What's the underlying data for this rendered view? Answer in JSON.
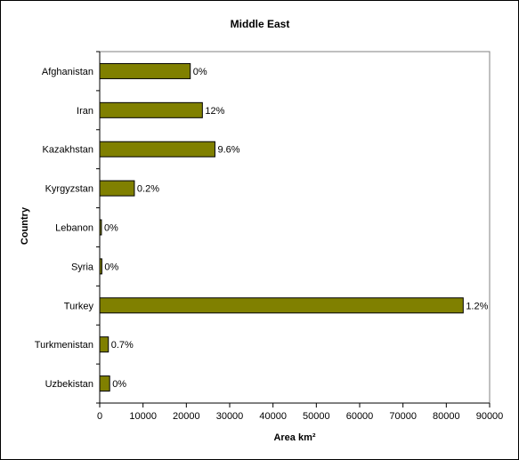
{
  "chart_data": {
    "type": "bar",
    "orientation": "horizontal",
    "title": "Middle East",
    "xlabel": "Area km²",
    "ylabel": "Country",
    "categories": [
      "Afghanistan",
      "Iran",
      "Kazakhstan",
      "Kyrgyzstan",
      "Lebanon",
      "Syria",
      "Turkey",
      "Turkmenistan",
      "Uzbekistan"
    ],
    "values": [
      20900,
      23700,
      26600,
      8000,
      400,
      500,
      83900,
      2000,
      2300
    ],
    "data_labels": [
      "0%",
      "12%",
      "9.6%",
      "0.2%",
      "0%",
      "0%",
      "1.2%",
      "0.7%",
      "0%"
    ],
    "xlim": [
      0,
      90000
    ],
    "xticks": [
      0,
      10000,
      20000,
      30000,
      40000,
      50000,
      60000,
      70000,
      80000,
      90000
    ],
    "grid": false,
    "legend": "none",
    "bar_color": "#808000",
    "bar_border_color": "#000000",
    "axis_color": "#000000"
  }
}
